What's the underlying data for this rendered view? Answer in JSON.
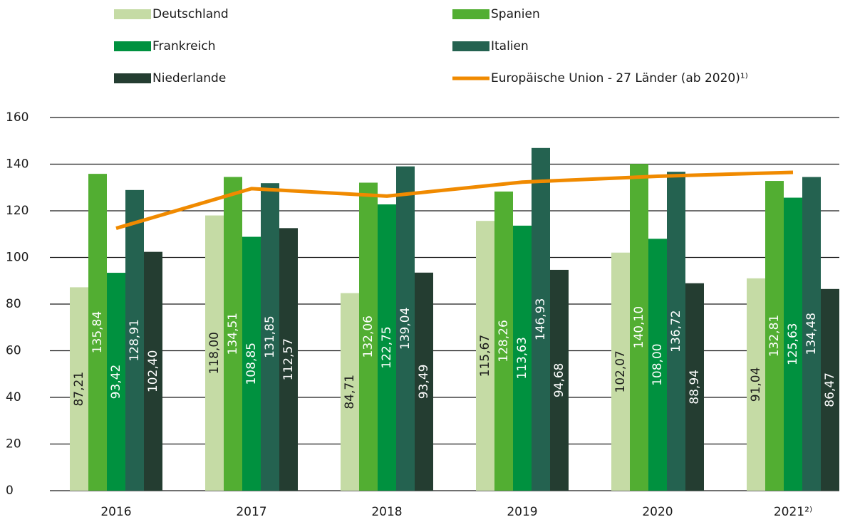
{
  "chart_data": {
    "type": "bar",
    "categories": [
      "2016",
      "2017",
      "2018",
      "2019",
      "2020",
      "2021²⁾"
    ],
    "series": [
      {
        "name": "Deutschland",
        "color": "#c5dba5",
        "values": [
          87.21,
          118.0,
          84.71,
          115.67,
          102.07,
          91.04
        ],
        "value_labels": [
          "87,21",
          "118,00",
          "84,71",
          "115,67",
          "102,07",
          "91,04"
        ]
      },
      {
        "name": "Spanien",
        "color": "#52ae32",
        "values": [
          135.84,
          134.51,
          132.06,
          128.26,
          140.1,
          132.81
        ],
        "value_labels": [
          "135,84",
          "134,51",
          "132,06",
          "128,26",
          "140,10",
          "132,81"
        ]
      },
      {
        "name": "Frankreich",
        "color": "#00913f",
        "values": [
          93.42,
          108.85,
          122.75,
          113.63,
          108.0,
          125.63
        ],
        "value_labels": [
          "93,42",
          "108,85",
          "122,75",
          "113,63",
          "108,00",
          "125,63"
        ]
      },
      {
        "name": "Italien",
        "color": "#246250",
        "values": [
          128.91,
          131.85,
          139.04,
          146.93,
          136.72,
          134.48
        ],
        "value_labels": [
          "128,91",
          "131,85",
          "139,04",
          "146,93",
          "136,72",
          "134,48"
        ]
      },
      {
        "name": "Niederlande",
        "color": "#243d31",
        "values": [
          102.4,
          112.57,
          93.49,
          94.68,
          88.94,
          86.47
        ],
        "value_labels": [
          "102,40",
          "112,57",
          "93,49",
          "94,68",
          "88,94",
          "86,47"
        ]
      },
      {
        "name": "Europäische Union - 27 Länder (ab 2020)¹⁾",
        "color": "#f08a00",
        "type": "line",
        "values": [
          112.5,
          129.5,
          126.3,
          132.3,
          134.8,
          136.5
        ]
      }
    ],
    "ylim": [
      0,
      160
    ],
    "yticks": [
      0,
      20,
      40,
      60,
      80,
      100,
      120,
      140,
      160
    ],
    "grid": true
  }
}
